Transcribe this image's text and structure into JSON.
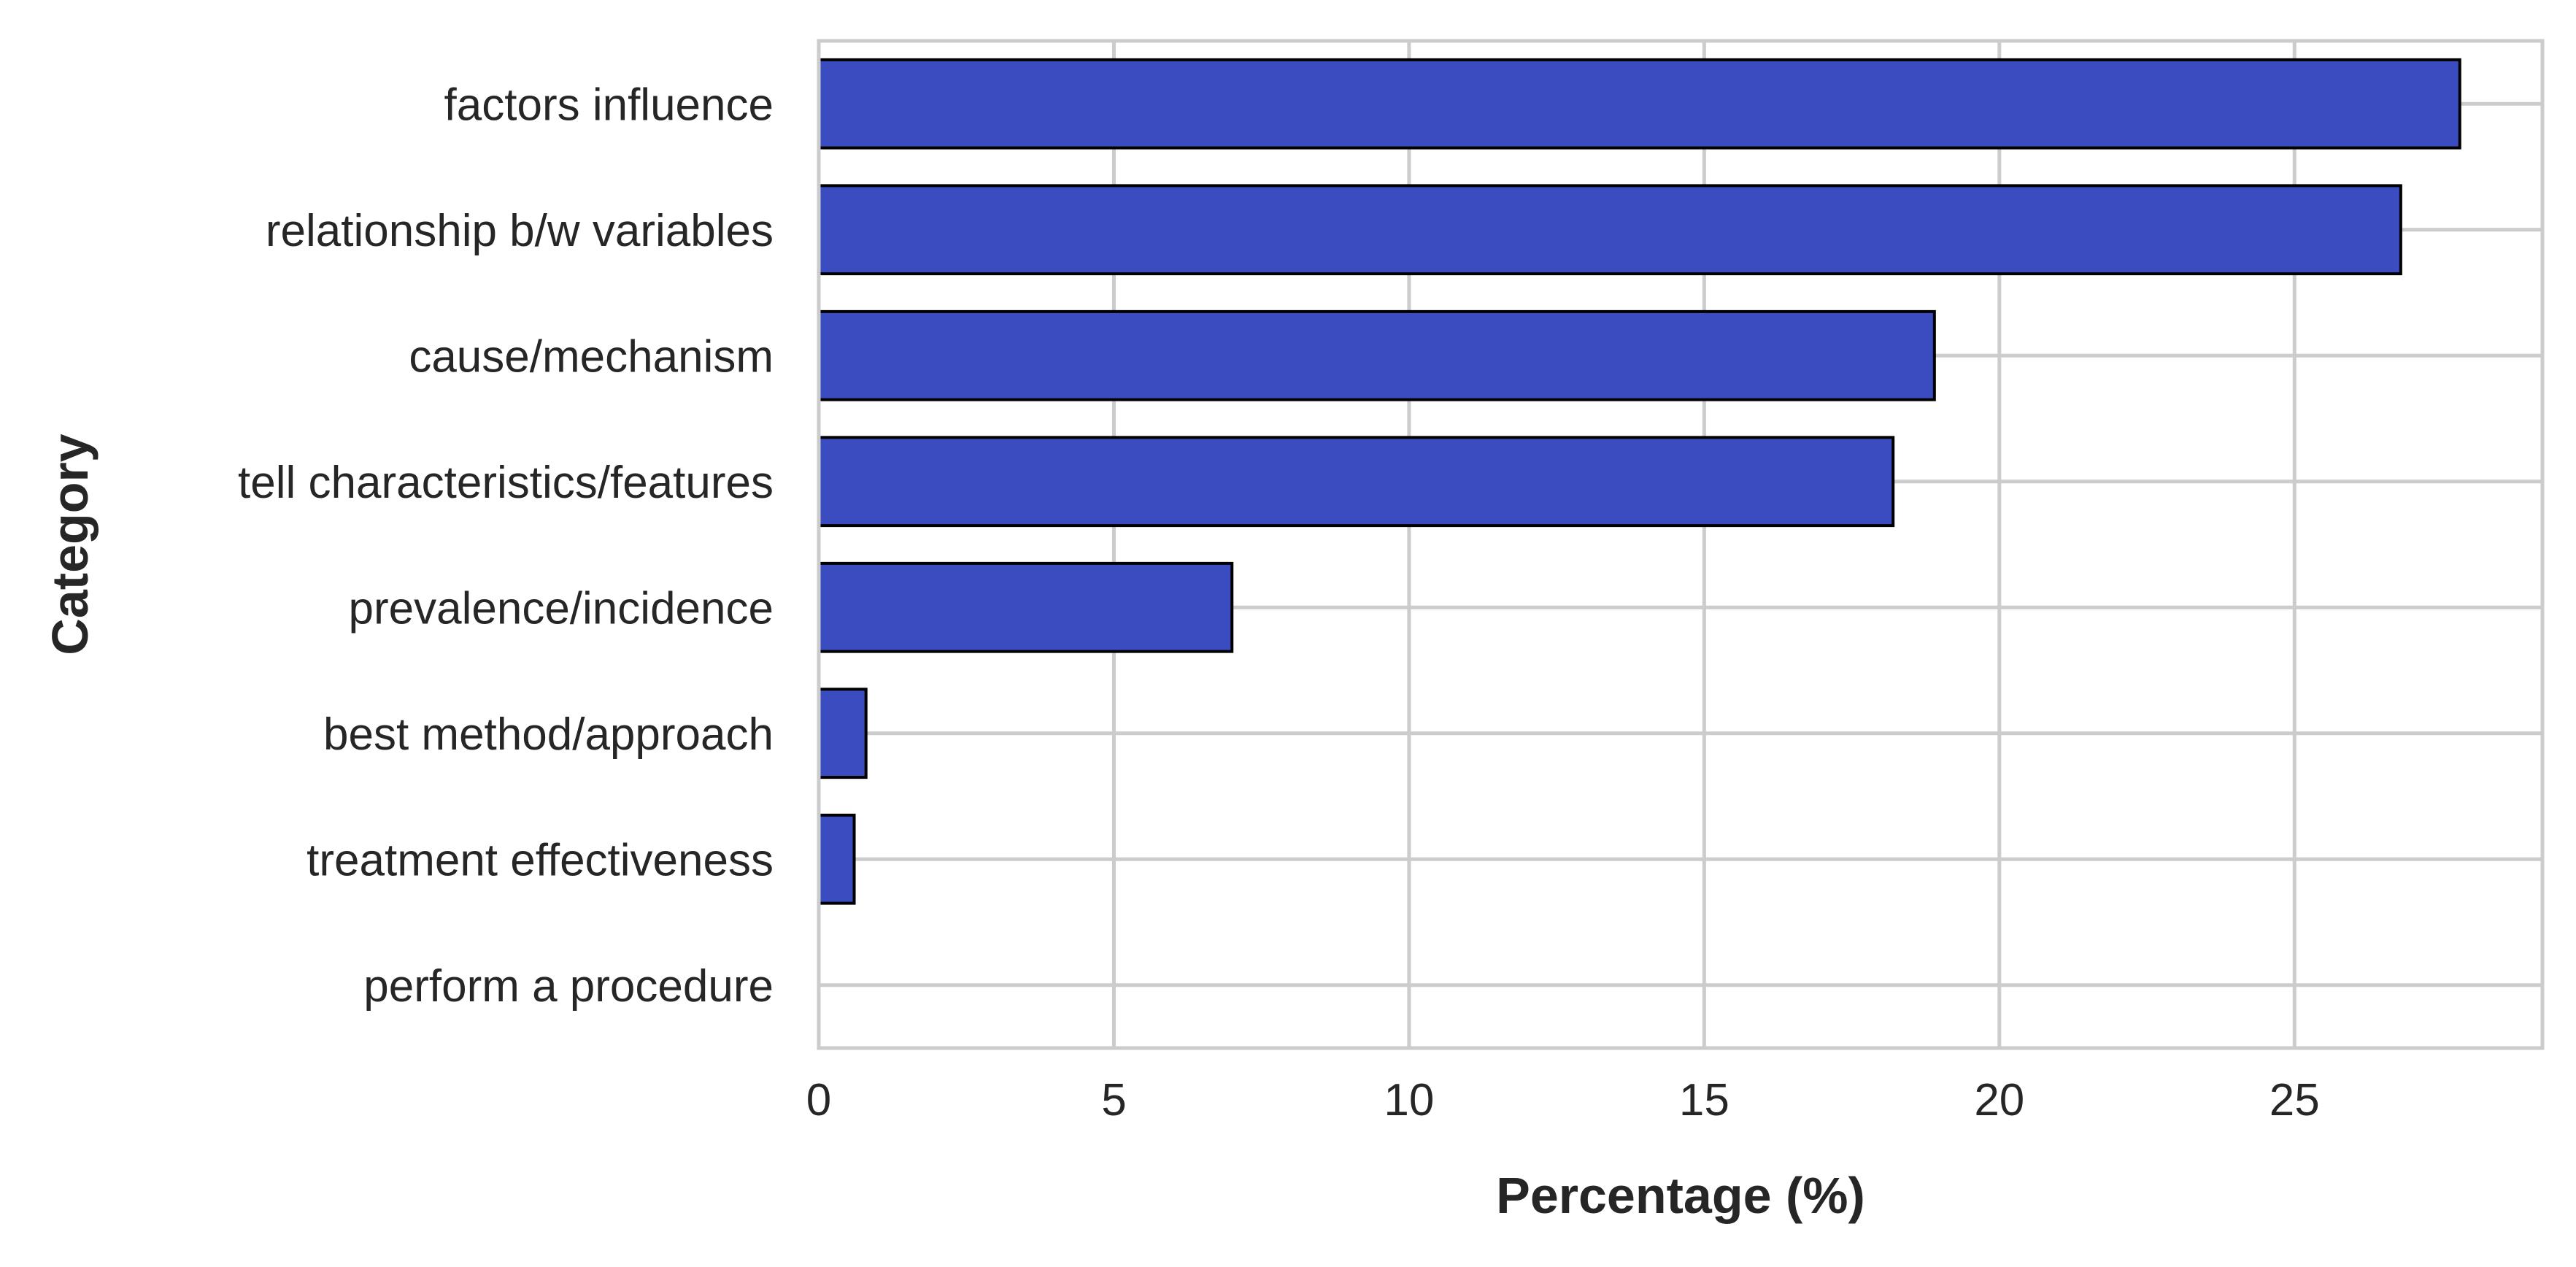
{
  "chart_data": {
    "type": "bar",
    "orientation": "horizontal",
    "title": "",
    "xlabel": "Percentage (%)",
    "ylabel": "Category",
    "categories": [
      "factors influence",
      "relationship b/w variables",
      "cause/mechanism",
      "tell characteristics/features",
      "prevalence/incidence",
      "best method/approach",
      "treatment effectiveness",
      "perform a procedure"
    ],
    "values": [
      27.8,
      26.8,
      18.9,
      18.2,
      7.0,
      0.8,
      0.6,
      0.0
    ],
    "xlim": [
      0,
      29.2
    ],
    "xticks": [
      0,
      5,
      10,
      15,
      20,
      25
    ],
    "xtick_labels": [
      "0",
      "5",
      "10",
      "15",
      "20",
      "25"
    ],
    "grid": true,
    "legend": "none",
    "colors": {
      "bar_fill": "#3b4cc0",
      "bar_edge": "#000000",
      "grid": "#cccccc",
      "frame": "#cccccc",
      "text": "#262626"
    }
  }
}
